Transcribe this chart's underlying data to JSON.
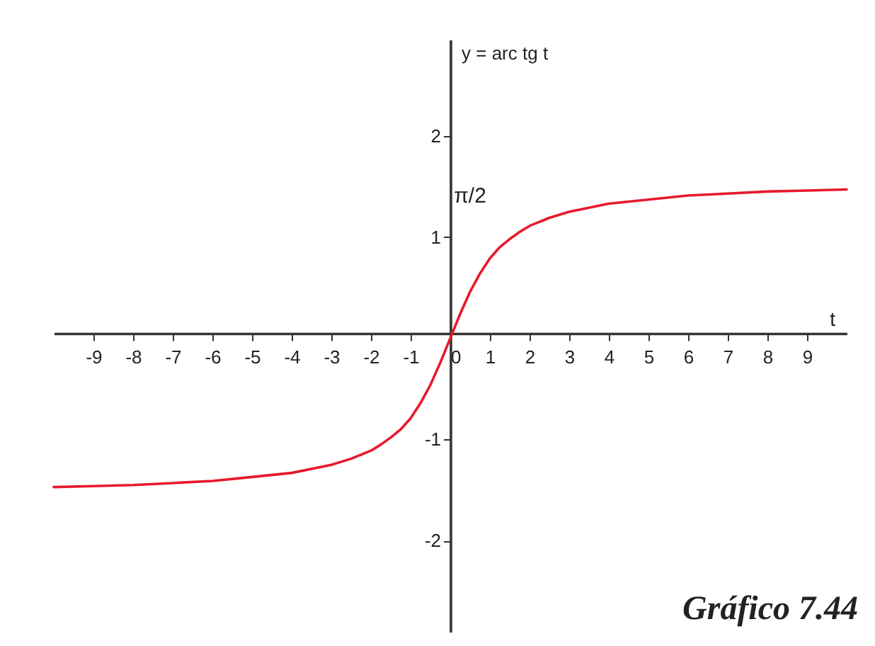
{
  "chart_data": {
    "type": "line",
    "xlabel": "t",
    "ylabel": "y = arc tg t",
    "xlim": [
      -10,
      10
    ],
    "ylim": [
      -2.9,
      2.95
    ],
    "xticks": [
      -9,
      -8,
      -7,
      -6,
      -5,
      -4,
      -3,
      -2,
      -1,
      0,
      1,
      2,
      3,
      4,
      5,
      6,
      7,
      8,
      9
    ],
    "yticks": [
      -2,
      -1,
      1,
      2
    ],
    "grid": false,
    "marker": "none",
    "line_style": "solid",
    "x": [
      -10,
      -9,
      -8,
      -7,
      -6,
      -5,
      -4,
      -3,
      -2.5,
      -2,
      -1.75,
      -1.5,
      -1.25,
      -1,
      -0.75,
      -0.5,
      -0.25,
      0,
      0.25,
      0.5,
      0.75,
      1,
      1.25,
      1.5,
      1.75,
      2,
      2.5,
      3,
      4,
      5,
      6,
      7,
      8,
      9,
      10
    ],
    "series": [
      {
        "color": "#e8192c",
        "values": [
          -1.47,
          -1.46,
          -1.45,
          -1.43,
          -1.41,
          -1.37,
          -1.33,
          -1.25,
          -1.19,
          -1.11,
          -1.05,
          -0.98,
          -0.9,
          -0.79,
          -0.64,
          -0.46,
          -0.24,
          0,
          0.24,
          0.46,
          0.64,
          0.79,
          0.9,
          0.98,
          1.05,
          1.11,
          1.19,
          1.25,
          1.33,
          1.37,
          1.41,
          1.43,
          1.45,
          1.46,
          1.47
        ]
      }
    ],
    "annotations": [
      "π/2",
      "Gráfico 7.44"
    ]
  }
}
